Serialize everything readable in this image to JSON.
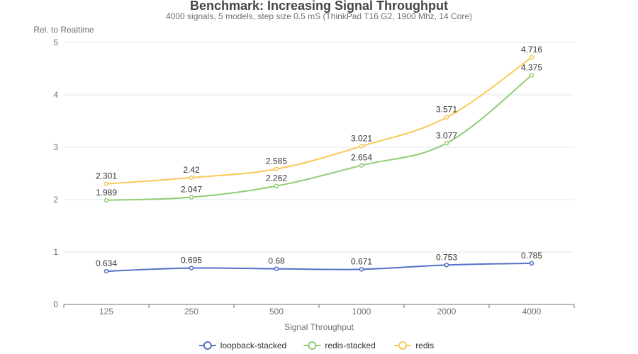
{
  "chart_data": {
    "type": "line",
    "title": "Benchmark: Increasing Signal Throughput",
    "subtitle": "4000 signals, 5 models, step size 0.5 mS (ThinkPad T16 G2, 1900 Mhz, 14 Core)",
    "xlabel": "Signal Throughput",
    "ylabel": "Rel. to Realtime",
    "categories": [
      "125",
      "250",
      "500",
      "1000",
      "2000",
      "4000"
    ],
    "ylim": [
      0,
      5
    ],
    "yticks": [
      0,
      1,
      2,
      3,
      4,
      5
    ],
    "grid": true,
    "legend_position": "bottom",
    "smooth": true,
    "series": [
      {
        "name": "loopback-stacked",
        "color": "#5470c6",
        "values": [
          0.634,
          0.695,
          0.68,
          0.671,
          0.753,
          0.785
        ]
      },
      {
        "name": "redis-stacked",
        "color": "#91cc75",
        "values": [
          1.989,
          2.047,
          2.262,
          2.654,
          3.077,
          4.375
        ]
      },
      {
        "name": "redis",
        "color": "#fac858",
        "values": [
          2.301,
          2.42,
          2.585,
          3.021,
          3.571,
          4.716
        ]
      }
    ]
  }
}
